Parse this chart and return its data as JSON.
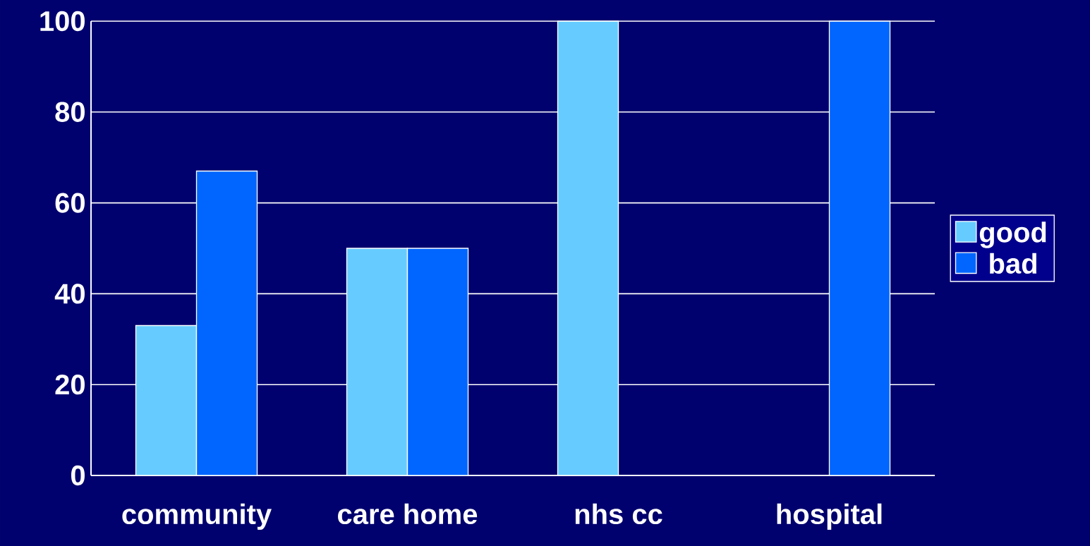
{
  "chart_data": {
    "type": "bar",
    "categories": [
      "community",
      "care home",
      "nhs cc",
      "hospital"
    ],
    "series": [
      {
        "name": "good",
        "color": "#66ccff",
        "values": [
          33,
          50,
          100,
          null
        ]
      },
      {
        "name": "bad",
        "color": "#0066ff",
        "values": [
          67,
          50,
          null,
          100
        ]
      }
    ],
    "ylim": [
      0,
      100
    ],
    "yticks": [
      0,
      20,
      40,
      60,
      80,
      100
    ],
    "grid": "y",
    "legend": "right"
  }
}
